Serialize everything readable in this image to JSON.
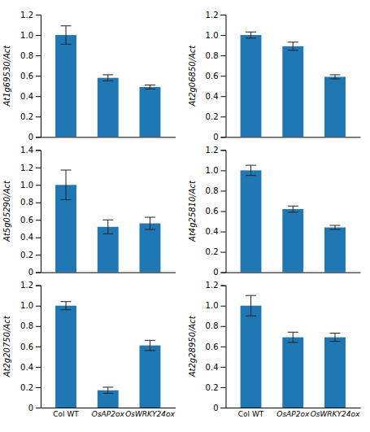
{
  "chart_data": [
    {
      "type": "bar",
      "y_label": "At1g69530/Act",
      "categories": [
        null,
        null,
        null
      ],
      "values": [
        1.0,
        0.58,
        0.49
      ],
      "errors": [
        0.09,
        0.03,
        0.02
      ],
      "ylim": [
        0,
        1.2
      ],
      "yticks": [
        0,
        0.2,
        0.4,
        0.6,
        0.8,
        {
          "value": 1.0,
          "label": "1.0"
        },
        1.2
      ],
      "grid": false,
      "tick_labels": "y"
    },
    {
      "type": "bar",
      "y_label": "At2g06850/Act",
      "categories": [
        null,
        null,
        null
      ],
      "values": [
        1.0,
        0.89,
        0.59
      ],
      "errors": [
        0.03,
        0.04,
        0.02
      ],
      "ylim": [
        0,
        1.2
      ],
      "yticks": [
        0,
        0.2,
        0.4,
        0.6,
        0.8,
        {
          "value": 1.0,
          "label": "1.0"
        },
        1.2
      ],
      "grid": false,
      "tick_labels": "y"
    },
    {
      "type": "bar",
      "y_label": "At5g05290/Act",
      "categories": [
        null,
        null,
        null
      ],
      "values": [
        1.0,
        0.52,
        0.56
      ],
      "errors": [
        0.17,
        0.08,
        0.07
      ],
      "ylim": [
        0,
        1.4
      ],
      "yticks": [
        0,
        0.2,
        0.4,
        0.6,
        0.8,
        {
          "value": 1.0,
          "label": "1.0"
        },
        1.2,
        1.4
      ],
      "grid": false,
      "tick_labels": "y"
    },
    {
      "type": "bar",
      "y_label": "At4g25810/Act",
      "categories": [
        null,
        null,
        null
      ],
      "values": [
        1.0,
        0.62,
        0.44
      ],
      "errors": [
        0.05,
        0.03,
        0.02
      ],
      "ylim": [
        0,
        1.2
      ],
      "yticks": [
        0,
        0.2,
        0.4,
        0.6,
        0.8,
        {
          "value": 1.0,
          "label": "1.0"
        },
        1.2
      ],
      "grid": false,
      "tick_labels": "y"
    },
    {
      "type": "bar",
      "y_label": "At2g20750/Act",
      "categories": [
        "Col WT",
        "OsAP2ox",
        "OsWRKY24ox"
      ],
      "values": [
        1.0,
        0.17,
        0.61
      ],
      "errors": [
        0.04,
        0.03,
        0.05
      ],
      "ylim": [
        0,
        1.2
      ],
      "yticks": [
        0,
        0.2,
        0.4,
        0.6,
        0.8,
        {
          "value": 1.0,
          "label": "1.0"
        },
        1.2
      ],
      "grid": false
    },
    {
      "type": "bar",
      "y_label": "At2g28950/Act",
      "categories": [
        "Col WT",
        "OsAP2ox",
        "OsWRKY24ox"
      ],
      "values": [
        1.0,
        0.69,
        0.69
      ],
      "errors": [
        0.1,
        0.05,
        0.04
      ],
      "ylim": [
        0,
        1.2
      ],
      "yticks": [
        0,
        0.2,
        0.4,
        0.6,
        0.8,
        {
          "value": 1.0,
          "label": "1.0"
        },
        1.2
      ],
      "grid": false
    }
  ]
}
